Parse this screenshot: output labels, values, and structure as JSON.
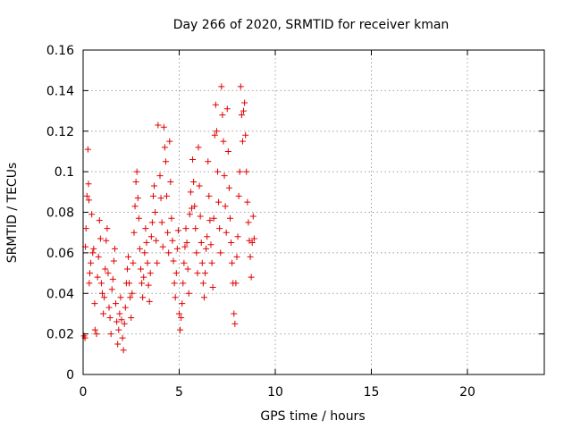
{
  "chart_data": {
    "type": "scatter",
    "title": "Day 266 of 2020, SRMTID for receiver kman",
    "xlabel": "GPS time / hours",
    "ylabel": "SRMTID / TECUs",
    "xlim": [
      0,
      24
    ],
    "ylim": [
      0,
      0.16
    ],
    "x_ticks": [
      0,
      5,
      10,
      15,
      20
    ],
    "x_tick_labels": [
      "0",
      "5",
      "10",
      "15",
      "20"
    ],
    "y_ticks": [
      0,
      0.02,
      0.04,
      0.06,
      0.08,
      0.1,
      0.12,
      0.14,
      0.16
    ],
    "y_tick_labels": [
      "0",
      "0.02",
      "0.04",
      "0.06",
      "0.08",
      "0.1",
      "0.12",
      "0.14",
      "0.16"
    ],
    "grid": true,
    "marker": "+",
    "color": "#e00000",
    "series": [
      {
        "name": "SRMTID",
        "points": [
          [
            0.05,
            0.019
          ],
          [
            0.1,
            0.018
          ],
          [
            0.12,
            0.063
          ],
          [
            0.15,
            0.072
          ],
          [
            0.2,
            0.088
          ],
          [
            0.25,
            0.111
          ],
          [
            0.28,
            0.094
          ],
          [
            0.3,
            0.086
          ],
          [
            0.32,
            0.045
          ],
          [
            0.35,
            0.05
          ],
          [
            0.4,
            0.055
          ],
          [
            0.45,
            0.079
          ],
          [
            0.5,
            0.06
          ],
          [
            0.55,
            0.062
          ],
          [
            0.6,
            0.035
          ],
          [
            0.62,
            0.022
          ],
          [
            0.7,
            0.02
          ],
          [
            0.75,
            0.048
          ],
          [
            0.8,
            0.058
          ],
          [
            0.85,
            0.076
          ],
          [
            0.9,
            0.067
          ],
          [
            0.95,
            0.045
          ],
          [
            1.0,
            0.04
          ],
          [
            1.05,
            0.03
          ],
          [
            1.1,
            0.038
          ],
          [
            1.15,
            0.052
          ],
          [
            1.2,
            0.066
          ],
          [
            1.25,
            0.072
          ],
          [
            1.3,
            0.05
          ],
          [
            1.35,
            0.033
          ],
          [
            1.4,
            0.028
          ],
          [
            1.45,
            0.02
          ],
          [
            1.5,
            0.042
          ],
          [
            1.55,
            0.047
          ],
          [
            1.6,
            0.056
          ],
          [
            1.65,
            0.062
          ],
          [
            1.7,
            0.035
          ],
          [
            1.75,
            0.026
          ],
          [
            1.8,
            0.015
          ],
          [
            1.85,
            0.022
          ],
          [
            1.9,
            0.03
          ],
          [
            1.95,
            0.038
          ],
          [
            2.0,
            0.027
          ],
          [
            2.05,
            0.018
          ],
          [
            2.1,
            0.012
          ],
          [
            2.15,
            0.025
          ],
          [
            2.2,
            0.033
          ],
          [
            2.25,
            0.045
          ],
          [
            2.3,
            0.052
          ],
          [
            2.35,
            0.058
          ],
          [
            2.4,
            0.045
          ],
          [
            2.45,
            0.038
          ],
          [
            2.5,
            0.028
          ],
          [
            2.55,
            0.04
          ],
          [
            2.6,
            0.055
          ],
          [
            2.65,
            0.07
          ],
          [
            2.7,
            0.083
          ],
          [
            2.75,
            0.095
          ],
          [
            2.8,
            0.1
          ],
          [
            2.85,
            0.087
          ],
          [
            2.9,
            0.077
          ],
          [
            2.95,
            0.062
          ],
          [
            3.0,
            0.052
          ],
          [
            3.05,
            0.045
          ],
          [
            3.1,
            0.038
          ],
          [
            3.15,
            0.048
          ],
          [
            3.2,
            0.06
          ],
          [
            3.25,
            0.072
          ],
          [
            3.3,
            0.065
          ],
          [
            3.35,
            0.055
          ],
          [
            3.4,
            0.044
          ],
          [
            3.45,
            0.036
          ],
          [
            3.5,
            0.05
          ],
          [
            3.55,
            0.068
          ],
          [
            3.6,
            0.075
          ],
          [
            3.65,
            0.088
          ],
          [
            3.7,
            0.093
          ],
          [
            3.75,
            0.08
          ],
          [
            3.8,
            0.066
          ],
          [
            3.85,
            0.055
          ],
          [
            3.9,
            0.123
          ],
          [
            4.0,
            0.098
          ],
          [
            4.05,
            0.087
          ],
          [
            4.1,
            0.075
          ],
          [
            4.15,
            0.063
          ],
          [
            4.2,
            0.122
          ],
          [
            4.25,
            0.112
          ],
          [
            4.3,
            0.105
          ],
          [
            4.35,
            0.088
          ],
          [
            4.4,
            0.07
          ],
          [
            4.45,
            0.06
          ],
          [
            4.5,
            0.115
          ],
          [
            4.55,
            0.095
          ],
          [
            4.6,
            0.077
          ],
          [
            4.65,
            0.066
          ],
          [
            4.7,
            0.056
          ],
          [
            4.75,
            0.045
          ],
          [
            4.8,
            0.038
          ],
          [
            4.85,
            0.05
          ],
          [
            4.9,
            0.062
          ],
          [
            4.95,
            0.071
          ],
          [
            5.0,
            0.03
          ],
          [
            5.05,
            0.022
          ],
          [
            5.1,
            0.028
          ],
          [
            5.15,
            0.035
          ],
          [
            5.2,
            0.045
          ],
          [
            5.25,
            0.055
          ],
          [
            5.3,
            0.063
          ],
          [
            5.35,
            0.072
          ],
          [
            5.4,
            0.065
          ],
          [
            5.45,
            0.052
          ],
          [
            5.5,
            0.04
          ],
          [
            5.55,
            0.079
          ],
          [
            5.6,
            0.09
          ],
          [
            5.65,
            0.082
          ],
          [
            5.7,
            0.106
          ],
          [
            5.75,
            0.095
          ],
          [
            5.8,
            0.083
          ],
          [
            5.85,
            0.072
          ],
          [
            5.9,
            0.06
          ],
          [
            5.95,
            0.05
          ],
          [
            6.0,
            0.112
          ],
          [
            6.05,
            0.093
          ],
          [
            6.1,
            0.078
          ],
          [
            6.15,
            0.065
          ],
          [
            6.2,
            0.055
          ],
          [
            6.25,
            0.045
          ],
          [
            6.3,
            0.038
          ],
          [
            6.35,
            0.05
          ],
          [
            6.4,
            0.062
          ],
          [
            6.45,
            0.068
          ],
          [
            6.5,
            0.105
          ],
          [
            6.55,
            0.088
          ],
          [
            6.6,
            0.076
          ],
          [
            6.65,
            0.064
          ],
          [
            6.7,
            0.055
          ],
          [
            6.75,
            0.043
          ],
          [
            6.8,
            0.077
          ],
          [
            6.85,
            0.118
          ],
          [
            6.9,
            0.133
          ],
          [
            6.95,
            0.12
          ],
          [
            7.0,
            0.1
          ],
          [
            7.05,
            0.085
          ],
          [
            7.1,
            0.072
          ],
          [
            7.15,
            0.06
          ],
          [
            7.2,
            0.142
          ],
          [
            7.25,
            0.128
          ],
          [
            7.3,
            0.115
          ],
          [
            7.35,
            0.098
          ],
          [
            7.4,
            0.083
          ],
          [
            7.45,
            0.07
          ],
          [
            7.5,
            0.131
          ],
          [
            7.55,
            0.11
          ],
          [
            7.6,
            0.092
          ],
          [
            7.65,
            0.077
          ],
          [
            7.7,
            0.065
          ],
          [
            7.75,
            0.055
          ],
          [
            7.8,
            0.045
          ],
          [
            7.85,
            0.03
          ],
          [
            7.9,
            0.025
          ],
          [
            7.95,
            0.045
          ],
          [
            8.0,
            0.058
          ],
          [
            8.05,
            0.068
          ],
          [
            8.1,
            0.088
          ],
          [
            8.15,
            0.1
          ],
          [
            8.2,
            0.142
          ],
          [
            8.25,
            0.128
          ],
          [
            8.3,
            0.115
          ],
          [
            8.35,
            0.13
          ],
          [
            8.4,
            0.134
          ],
          [
            8.45,
            0.118
          ],
          [
            8.5,
            0.1
          ],
          [
            8.55,
            0.085
          ],
          [
            8.6,
            0.075
          ],
          [
            8.65,
            0.066
          ],
          [
            8.7,
            0.058
          ],
          [
            8.75,
            0.048
          ],
          [
            8.8,
            0.065
          ],
          [
            8.85,
            0.078
          ],
          [
            8.9,
            0.067
          ]
        ]
      }
    ]
  }
}
